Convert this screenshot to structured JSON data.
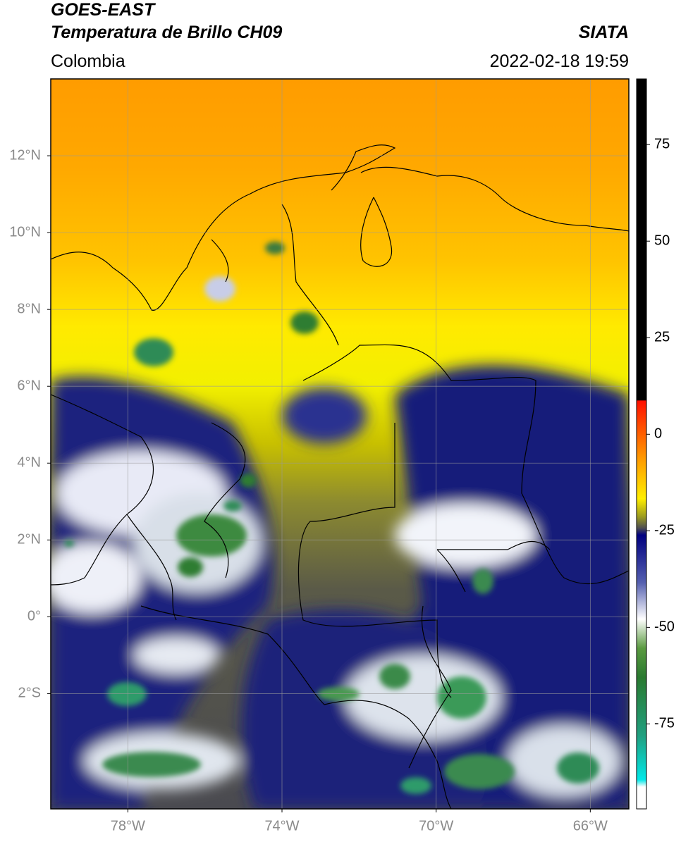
{
  "header": {
    "title1": "GOES-EAST",
    "title2": "Temperatura de Brillo CH09",
    "source": "SIATA",
    "region": "Colombia",
    "datetime": "2022-02-18 19:59"
  },
  "map": {
    "xlim": [
      -80,
      -65
    ],
    "ylim": [
      -5,
      14
    ],
    "grid": true,
    "xticks": [
      {
        "value": -78,
        "label": "78°W"
      },
      {
        "value": -74,
        "label": "74°W"
      },
      {
        "value": -70,
        "label": "70°W"
      },
      {
        "value": -66,
        "label": "66°W"
      }
    ],
    "yticks": [
      {
        "value": 12,
        "label": "12°N"
      },
      {
        "value": 10,
        "label": "10°N"
      },
      {
        "value": 8,
        "label": "8°N"
      },
      {
        "value": 6,
        "label": "6°N"
      },
      {
        "value": 4,
        "label": "4°N"
      },
      {
        "value": 2,
        "label": "2°N"
      },
      {
        "value": 0,
        "label": "0°"
      },
      {
        "value": -2,
        "label": "2°S"
      }
    ]
  },
  "colorbar": {
    "lim": [
      -97,
      92
    ],
    "ticks": [
      75,
      50,
      25,
      0,
      -25,
      -50,
      -75
    ]
  }
}
